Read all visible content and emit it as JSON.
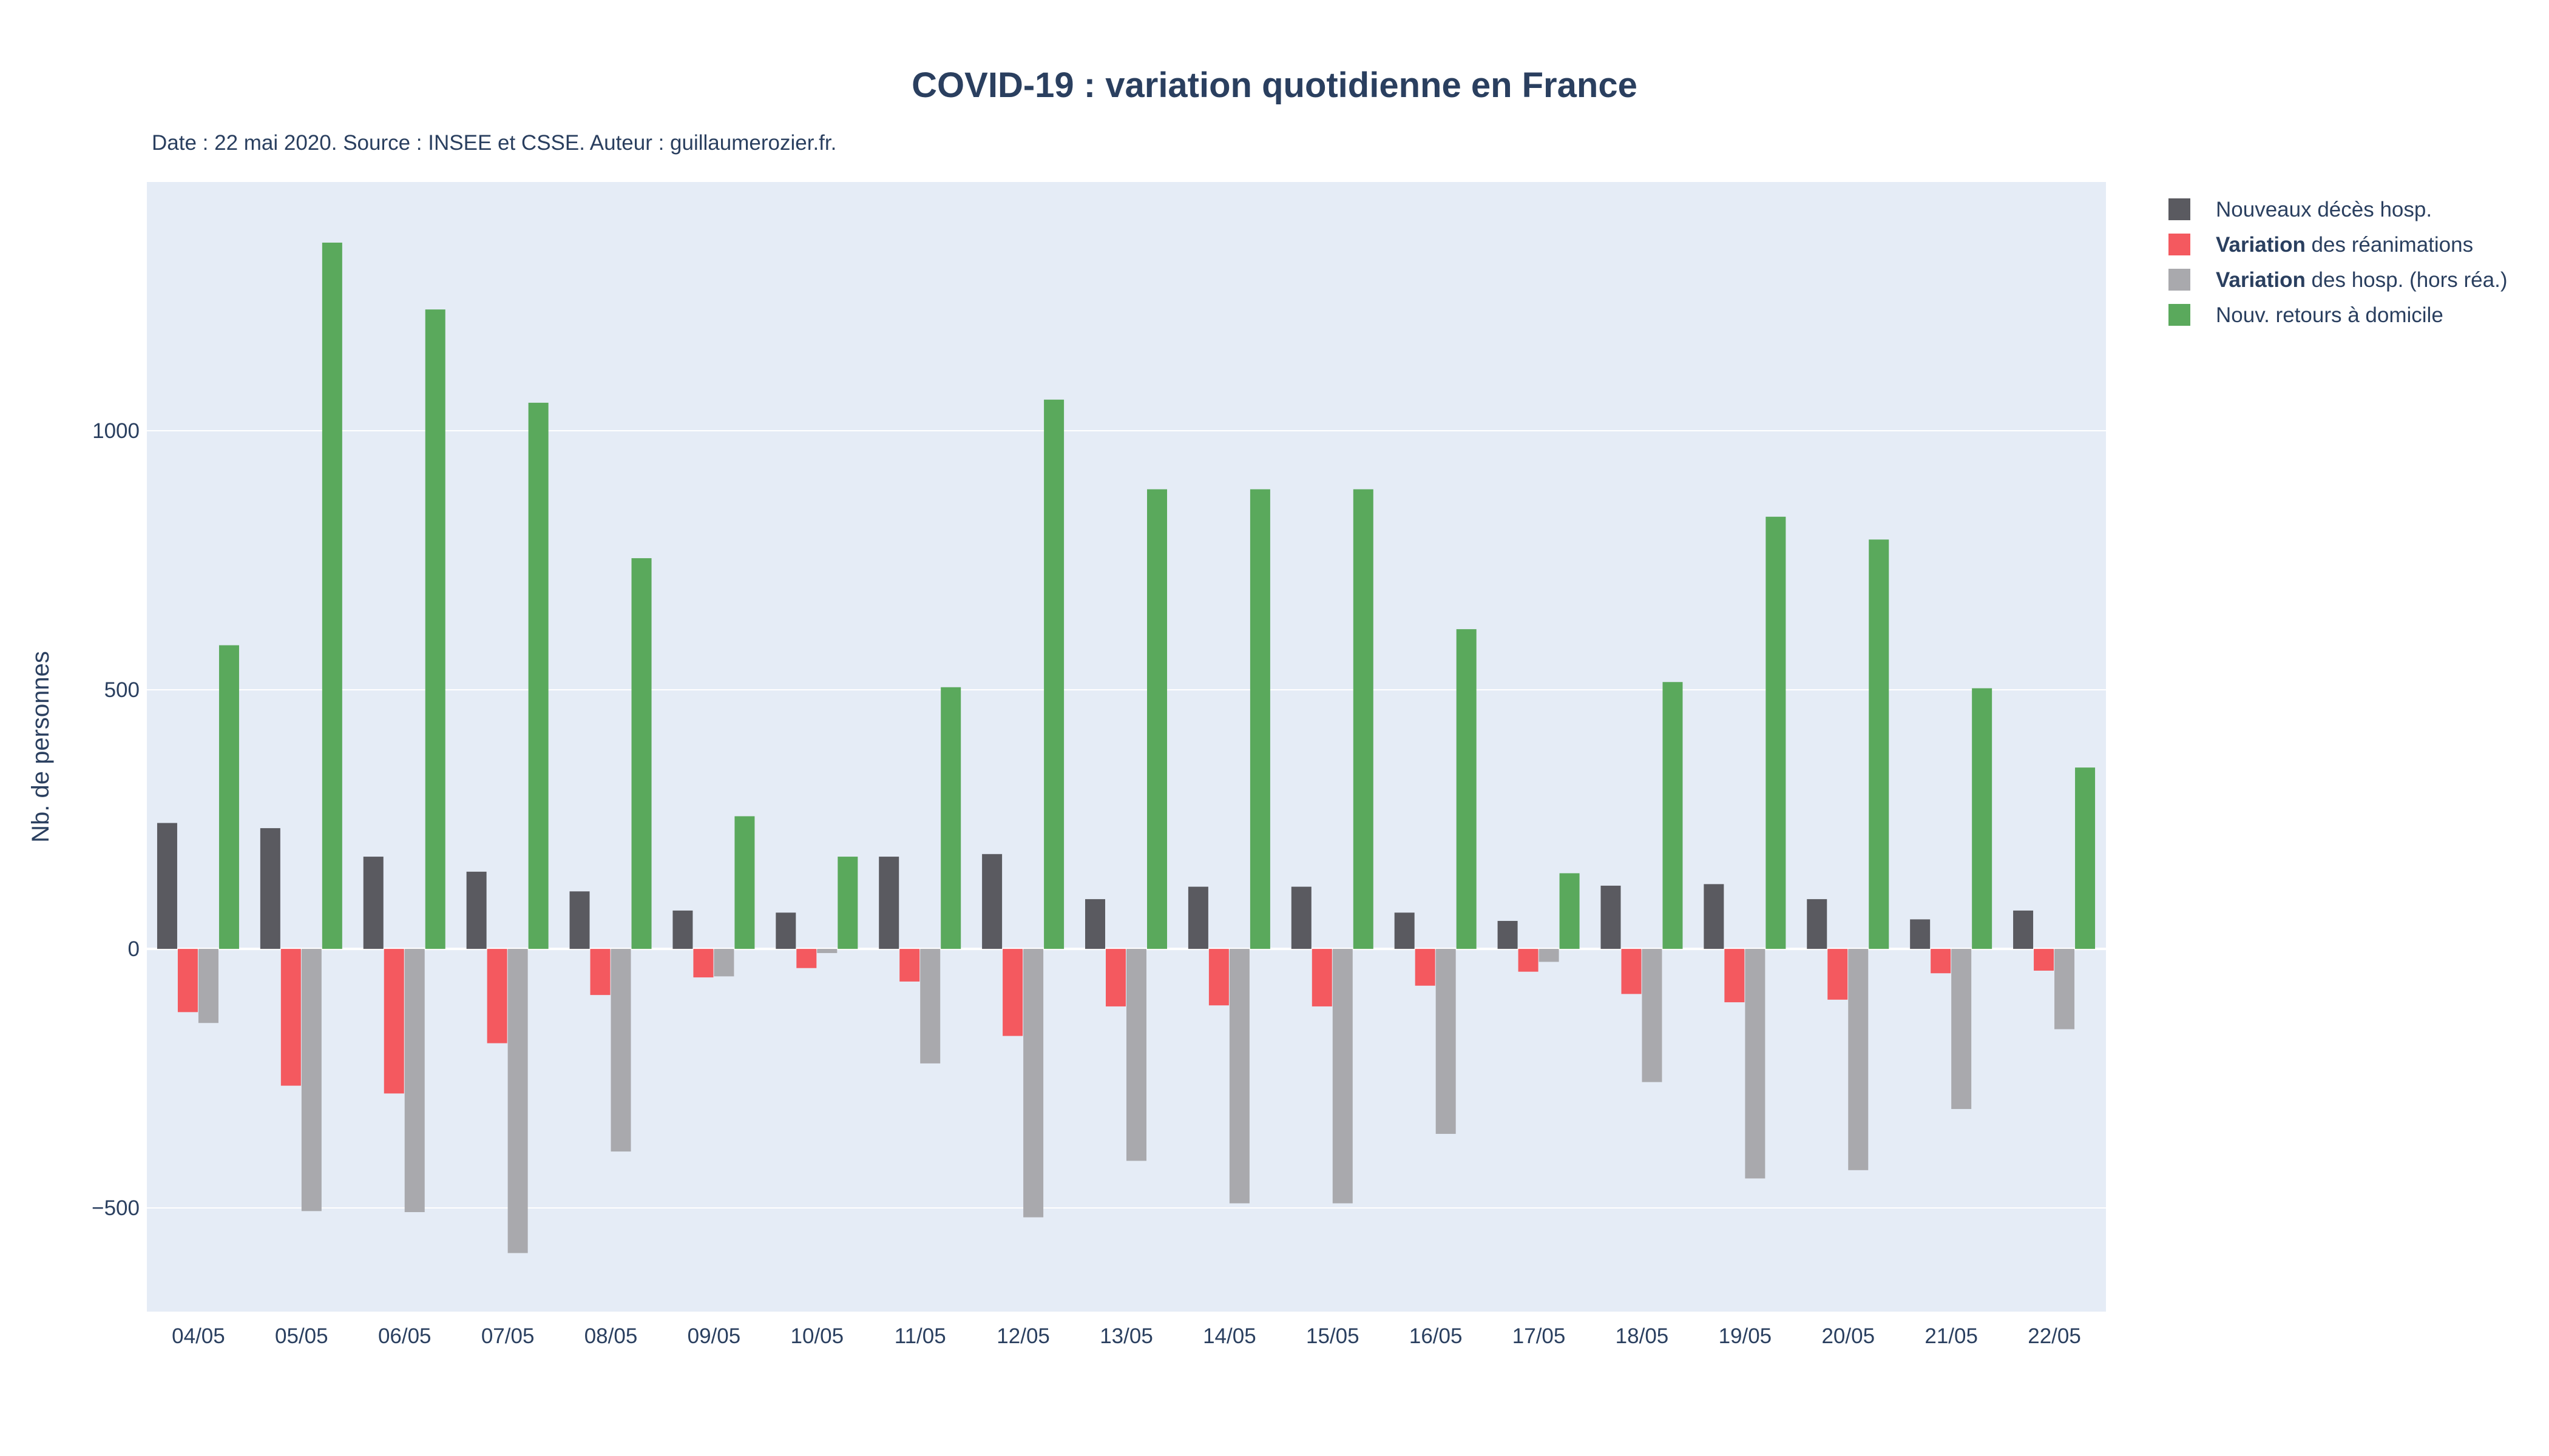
{
  "chart_data": {
    "type": "bar",
    "title": "COVID-19 : variation quotidienne en France",
    "subtitle": "Date : 22 mai 2020. Source : INSEE et CSSE. Auteur : guillaumerozier.fr.",
    "xlabel": "",
    "ylabel": "Nb. de personnes",
    "ylim": [
      -700,
      1480
    ],
    "yticks": [
      -500,
      0,
      500,
      1000
    ],
    "ytick_labels": [
      "−500",
      "0",
      "500",
      "1000"
    ],
    "grid": true,
    "legend_position": "top-right",
    "categories": [
      "04/05",
      "05/05",
      "06/05",
      "07/05",
      "08/05",
      "09/05",
      "10/05",
      "11/05",
      "12/05",
      "13/05",
      "14/05",
      "15/05",
      "16/05",
      "17/05",
      "18/05",
      "19/05",
      "20/05",
      "21/05",
      "22/05"
    ],
    "series": [
      {
        "name": "Nouveaux décès hosp.",
        "bold_prefix": "",
        "rest": "Nouveaux décès hosp.",
        "color": "#5a5a60",
        "values": [
          243,
          233,
          178,
          149,
          111,
          74,
          70,
          178,
          183,
          96,
          120,
          120,
          70,
          54,
          122,
          125,
          96,
          57,
          74
        ]
      },
      {
        "name": "Variation des réanimations",
        "bold_prefix": "Variation",
        "rest": " des réanimations",
        "color": "#f4595f",
        "values": [
          -122,
          -264,
          -279,
          -182,
          -89,
          -55,
          -37,
          -63,
          -168,
          -111,
          -109,
          -111,
          -71,
          -44,
          -87,
          -103,
          -98,
          -47,
          -42
        ]
      },
      {
        "name": "Variation des hosp. (hors réa.)",
        "bold_prefix": "Variation",
        "rest": " des hosp. (hors réa.)",
        "color": "#a9a9ad",
        "values": [
          -143,
          -506,
          -508,
          -587,
          -391,
          -53,
          -8,
          -221,
          -518,
          -409,
          -491,
          -491,
          -357,
          -25,
          -257,
          -443,
          -427,
          -309,
          -155
        ]
      },
      {
        "name": "Nouv. retours à domicile",
        "bold_prefix": "",
        "rest": "Nouv. retours à domicile",
        "color": "#5aa95c",
        "values": [
          586,
          1363,
          1234,
          1054,
          754,
          256,
          178,
          505,
          1060,
          887,
          887,
          887,
          617,
          146,
          515,
          834,
          790,
          503,
          350
        ]
      }
    ]
  }
}
